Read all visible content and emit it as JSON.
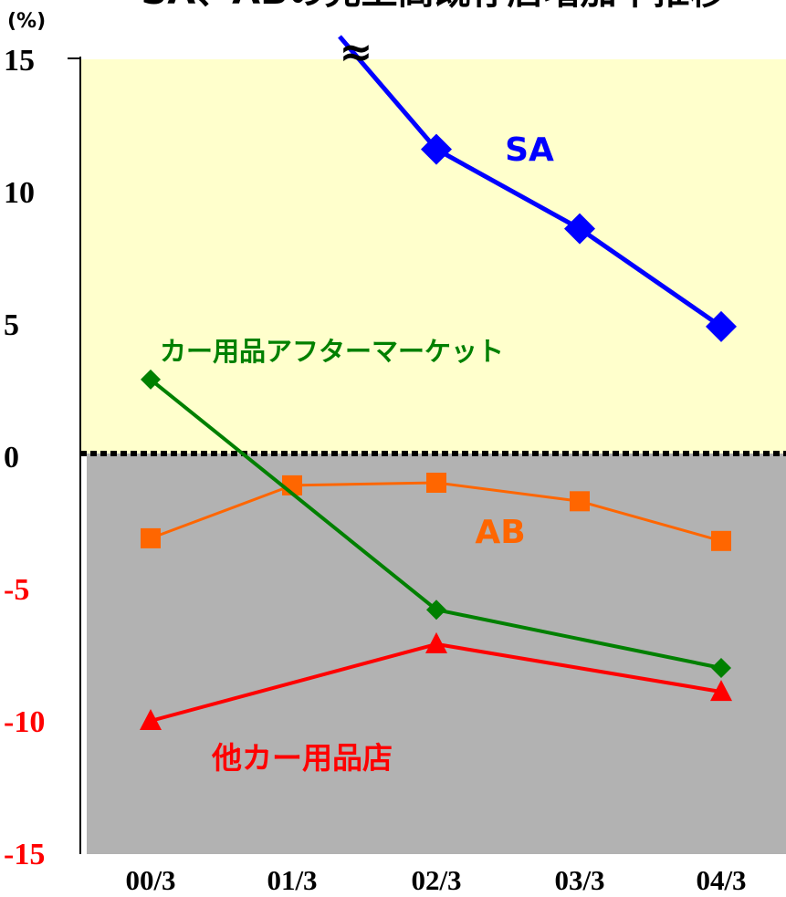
{
  "chart_data": {
    "type": "line",
    "title": "SA、ABの売上高既存店増加率推移",
    "unit_label": "(%)",
    "categories": [
      "00/3",
      "01/3",
      "02/3",
      "03/3",
      "04/3"
    ],
    "ylim": [
      -15,
      15
    ],
    "yticks": [
      "15",
      "10",
      "5",
      "0",
      "-5",
      "-10",
      "-15"
    ],
    "ytick_values": [
      15,
      10,
      5,
      0,
      -5,
      -10,
      -15
    ],
    "break_symbol": "≈",
    "series": [
      {
        "name": "SA",
        "color": "#0000ff",
        "marker": "diamond",
        "values": [
          null,
          null,
          11.6,
          8.6,
          4.9
        ]
      },
      {
        "name": "AB",
        "color": "#ff6600",
        "marker": "square",
        "values": [
          -3.1,
          -1.1,
          -1.0,
          -1.7,
          -3.2
        ]
      },
      {
        "name": "カー用品アフターマーケット",
        "color": "#008000",
        "marker": "diamond",
        "values": [
          2.9,
          null,
          -5.8,
          null,
          -8.0
        ]
      },
      {
        "name": "他カー用品店",
        "color": "#ff0000",
        "marker": "triangle",
        "values": [
          -10.0,
          null,
          -7.1,
          null,
          -8.9
        ]
      }
    ],
    "colors": {
      "positive_region": "#ffffcc",
      "negative_region": "#b2b2b2",
      "positive_tick": "#000000",
      "negative_tick": "#ff0000"
    },
    "grid": false
  }
}
